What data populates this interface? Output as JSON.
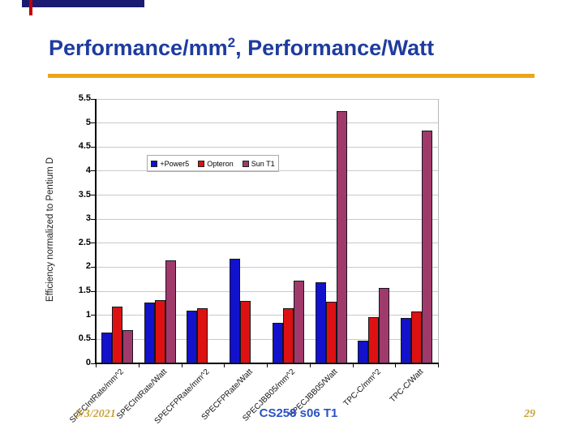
{
  "slide": {
    "title": {
      "main": "Performance/mm",
      "sup": "2",
      "rest": ", Performance/Watt"
    },
    "footer": {
      "date": "9/3/2021",
      "course": "CS258 s06 T1",
      "page": "29"
    }
  },
  "colors": {
    "title_blue": "#1e3c9e",
    "divider_gold": "#eba51c",
    "footer_gold": "#c9a23a",
    "footer_blue": "#2b51c5",
    "ornament_navy": "#1b1b72",
    "ornament_red": "#c00000",
    "gridline_gray": "#c9c9c9",
    "axis_black": "#000000"
  },
  "chart_data": {
    "type": "bar",
    "title": "",
    "xlabel": "",
    "ylabel": "Efficiency normalized to Pentium D",
    "ylim": [
      0,
      5.5
    ],
    "ytick_step": 0.5,
    "ytick_labels": [
      "0",
      "0.5",
      "1",
      "1.5",
      "2",
      "2.5",
      "3",
      "3.5",
      "4",
      "4.5",
      "5",
      "5.5"
    ],
    "grid": true,
    "legend_position": "inside-top-left",
    "categories": [
      "SPECIntRate/mm^2",
      "SPECIntRate/Watt",
      "SPECFPRate/mm^2",
      "SPECFPRate/Watt",
      "SPECJBB05/mm^2",
      "SPECJBB05/Watt",
      "TPC-C/mm^2",
      "TPC-C/Watt"
    ],
    "series": [
      {
        "name": "+Power5",
        "color": "#1212cc",
        "values": [
          0.64,
          1.27,
          1.1,
          2.18,
          0.84,
          1.68,
          0.48,
          0.94
        ]
      },
      {
        "name": "Opteron",
        "color": "#dd1111",
        "values": [
          1.18,
          1.32,
          1.14,
          1.3,
          1.14,
          1.28,
          0.96,
          1.08
        ]
      },
      {
        "name": "Sun T1",
        "color": "#a03a6b",
        "values": [
          0.7,
          2.15,
          0,
          0,
          1.72,
          5.25,
          1.57,
          4.85
        ]
      }
    ]
  }
}
